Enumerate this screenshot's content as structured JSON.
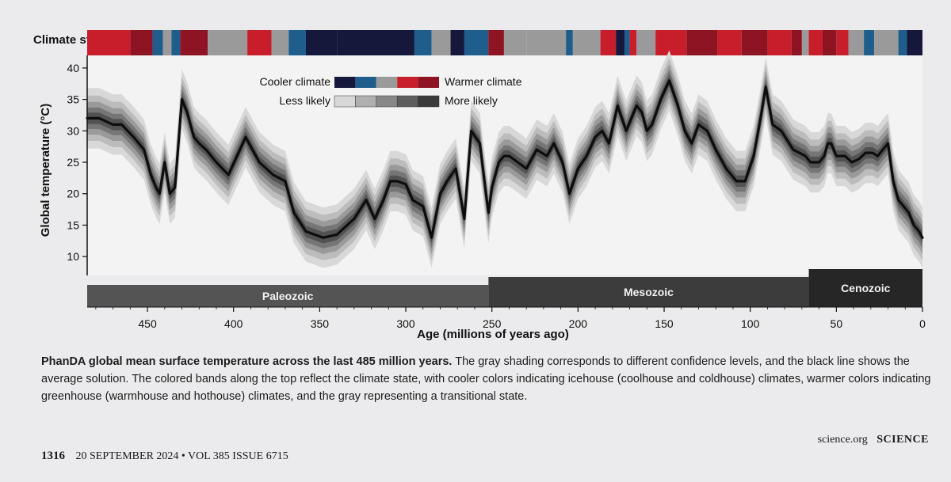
{
  "chart_data": {
    "type": "line",
    "title": "",
    "xlabel": "Age (millions of years ago)",
    "ylabel": "Global temperature (°C)",
    "xlim": [
      485,
      0
    ],
    "ylim": [
      7,
      42
    ],
    "x_ticks": [
      "450",
      "400",
      "350",
      "300",
      "250",
      "200",
      "150",
      "100",
      "50",
      "0"
    ],
    "y_ticks": [
      "10",
      "15",
      "20",
      "25",
      "30",
      "35",
      "40"
    ],
    "grid": false,
    "legend": {
      "placement": "top-left",
      "climate_low": "Cooler climate",
      "climate_high": "Warmer climate",
      "conf_low": "Less likely",
      "conf_high": "More likely",
      "climate_colors": [
        "#15183a",
        "#1e5d8c",
        "#9a9a9a",
        "#c81e2c",
        "#8e1323"
      ],
      "conf_colors": [
        "#d8d8d8",
        "#b0b0b0",
        "#888888",
        "#5e5e5e",
        "#3a3a3a"
      ]
    },
    "climate_state_label": "Climate state",
    "climate_state_bands": [
      {
        "from": 485,
        "to": 460,
        "state": "warm"
      },
      {
        "from": 460,
        "to": 447,
        "state": "hot"
      },
      {
        "from": 447,
        "to": 441,
        "state": "cool"
      },
      {
        "from": 441,
        "to": 436,
        "state": "transition"
      },
      {
        "from": 436,
        "to": 431,
        "state": "cool"
      },
      {
        "from": 431,
        "to": 415,
        "state": "hot"
      },
      {
        "from": 415,
        "to": 392,
        "state": "transition"
      },
      {
        "from": 392,
        "to": 378,
        "state": "warm"
      },
      {
        "from": 378,
        "to": 368,
        "state": "transition"
      },
      {
        "from": 368,
        "to": 358,
        "state": "cool"
      },
      {
        "from": 358,
        "to": 340,
        "state": "cold"
      },
      {
        "from": 340,
        "to": 295,
        "state": "cold"
      },
      {
        "from": 295,
        "to": 285,
        "state": "cool"
      },
      {
        "from": 285,
        "to": 274,
        "state": "transition"
      },
      {
        "from": 274,
        "to": 266,
        "state": "cold"
      },
      {
        "from": 266,
        "to": 252,
        "state": "cool"
      },
      {
        "from": 252,
        "to": 243,
        "state": "hot"
      },
      {
        "from": 243,
        "to": 230,
        "state": "transition"
      },
      {
        "from": 230,
        "to": 207,
        "state": "transition"
      },
      {
        "from": 207,
        "to": 203,
        "state": "cool"
      },
      {
        "from": 203,
        "to": 187,
        "state": "transition"
      },
      {
        "from": 187,
        "to": 178,
        "state": "warm"
      },
      {
        "from": 178,
        "to": 173,
        "state": "cold"
      },
      {
        "from": 173,
        "to": 170,
        "state": "cool"
      },
      {
        "from": 170,
        "to": 166,
        "state": "warm"
      },
      {
        "from": 166,
        "to": 155,
        "state": "transition"
      },
      {
        "from": 155,
        "to": 137,
        "state": "warm"
      },
      {
        "from": 137,
        "to": 119,
        "state": "hot"
      },
      {
        "from": 119,
        "to": 105,
        "state": "warm"
      },
      {
        "from": 105,
        "to": 90,
        "state": "hot"
      },
      {
        "from": 90,
        "to": 76,
        "state": "warm"
      },
      {
        "from": 76,
        "to": 70,
        "state": "hot"
      },
      {
        "from": 70,
        "to": 66,
        "state": "transition"
      },
      {
        "from": 66,
        "to": 58,
        "state": "warm"
      },
      {
        "from": 58,
        "to": 50,
        "state": "hot"
      },
      {
        "from": 50,
        "to": 43,
        "state": "warm"
      },
      {
        "from": 43,
        "to": 34,
        "state": "transition"
      },
      {
        "from": 34,
        "to": 28,
        "state": "cool"
      },
      {
        "from": 28,
        "to": 14,
        "state": "transition"
      },
      {
        "from": 14,
        "to": 9,
        "state": "cool"
      },
      {
        "from": 9,
        "to": 0,
        "state": "cold"
      }
    ],
    "eras": [
      {
        "name": "Paleozoic",
        "from": 485,
        "to": 252
      },
      {
        "name": "Mesozoic",
        "from": 252,
        "to": 66
      },
      {
        "name": "Cenozoic",
        "from": 66,
        "to": 0
      }
    ],
    "series": [
      {
        "x": [
          485,
          478,
          470,
          465,
          458,
          452,
          448,
          445,
          443,
          440,
          437,
          434,
          430,
          427,
          423,
          420,
          416,
          410,
          403,
          398,
          393,
          385,
          377,
          370,
          365,
          358,
          353,
          348,
          340,
          330,
          323,
          318,
          313,
          309,
          305,
          300,
          296,
          290,
          285,
          280,
          276,
          271,
          266,
          262,
          257,
          253,
          252,
          250,
          246,
          243,
          240,
          235,
          230,
          224,
          218,
          214,
          209,
          205,
          200,
          195,
          190,
          186,
          182,
          177,
          172,
          169,
          166,
          163,
          160,
          157,
          152,
          147,
          142,
          138,
          134,
          130,
          125,
          120,
          114,
          108,
          103,
          98,
          94,
          91,
          87,
          82,
          75,
          68,
          65,
          60,
          57,
          55,
          53,
          50,
          45,
          41,
          37,
          33,
          29,
          26,
          23,
          20,
          17,
          14,
          11,
          8,
          5,
          2,
          0
        ],
        "y": [
          32,
          32,
          31,
          31,
          29,
          27,
          23,
          21,
          20,
          25,
          20,
          21,
          35,
          33,
          29,
          28,
          27,
          25,
          23,
          26,
          29,
          25,
          23,
          22,
          17,
          14,
          13.5,
          13,
          13.5,
          16,
          19,
          16,
          19,
          22,
          22,
          21.5,
          19,
          18,
          13,
          20,
          22,
          24,
          16,
          30,
          28,
          19,
          17,
          21,
          25,
          26,
          26,
          25,
          24,
          27,
          26,
          28,
          25,
          20,
          24,
          26,
          29,
          30,
          28,
          34,
          30,
          32,
          34,
          33,
          30,
          31,
          35,
          38,
          34,
          30,
          28,
          31,
          30,
          27,
          24,
          22,
          22,
          26,
          32,
          37,
          31,
          30,
          27,
          26,
          25,
          25,
          26,
          28,
          28,
          26,
          26,
          25,
          25.5,
          26.5,
          26.5,
          26,
          27,
          28,
          22,
          19,
          18,
          17,
          15,
          14,
          13
        ]
      }
    ]
  },
  "caption": {
    "title": "PhanDA global mean surface temperature across the last 485 million years.",
    "body": " The gray shading corresponds to different confidence levels, and the black line shows the average solution. The colored bands along the top reflect the climate state, with cooler colors indicating icehouse (coolhouse and coldhouse) climates, warmer colors indicating greenhouse (warmhouse and hothouse) climates, and the gray representing a transitional state."
  },
  "footer": {
    "page_number": "1316",
    "issue": "20 SEPTEMBER 2024 • VOL 385 ISSUE 6715",
    "site": "science.org",
    "magazine": "SCIENCE"
  }
}
